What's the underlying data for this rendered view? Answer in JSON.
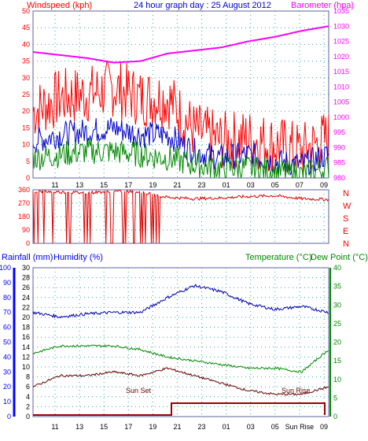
{
  "header": {
    "windspeed_label": "Windspeed (kph)",
    "title": "24 hour graph day : 25 August 2012",
    "barometer_label": "Barometer (hpa)"
  },
  "colors": {
    "wind_gust": "#ff0000",
    "wind_avg": "#0000cc",
    "wind_low": "#008800",
    "barometer": "#ff00ff",
    "direction": "#dd0000",
    "temperature": "#0000aa",
    "dewpoint": "#008800",
    "humidity_like": "#660000",
    "sun_line": "#990000",
    "grid": "#3aa6a6",
    "axis_blue": "#0000ff",
    "axis_red": "#ff0000",
    "axis_magenta": "#ff00ff",
    "axis_green": "#008800"
  },
  "time_ticks": [
    "11",
    "13",
    "15",
    "17",
    "19",
    "21",
    "23",
    "01",
    "03",
    "05",
    "07",
    "09"
  ],
  "bottom_time_ticks": [
    "11",
    "13",
    "15",
    "17",
    "19",
    "21",
    "23",
    "01",
    "03",
    "05",
    "Sun Rise",
    "09"
  ],
  "chart_data": [
    {
      "type": "line",
      "title": "24 hour graph day : 25 August 2012",
      "ylabel": "Windspeed (kph)",
      "y2label": "Barometer (hpa)",
      "ylim": [
        0,
        50
      ],
      "y2lim": [
        980,
        1035
      ],
      "y_ticks": [
        "0",
        "5",
        "10",
        "15",
        "20",
        "25",
        "30",
        "35",
        "40",
        "45",
        "50"
      ],
      "y2_ticks": [
        "980",
        "985",
        "990",
        "995",
        "1000",
        "1005",
        "1010",
        "1015",
        "1020",
        "1025",
        "1030",
        "1035"
      ],
      "x": [
        "11",
        "13",
        "15",
        "17",
        "19",
        "21",
        "23",
        "01",
        "03",
        "05",
        "07",
        "09"
      ],
      "series": [
        {
          "role": "gust",
          "values": [
            20,
            24,
            25,
            27,
            24,
            24,
            14,
            11,
            12,
            10,
            8,
            12
          ]
        },
        {
          "role": "average",
          "values": [
            11,
            13,
            14,
            15,
            13,
            13,
            8,
            6,
            7,
            5,
            4,
            7
          ]
        },
        {
          "role": "low",
          "values": [
            6,
            7,
            8,
            8,
            7,
            6,
            4,
            3,
            3,
            2,
            1,
            3
          ]
        },
        {
          "role": "barometer",
          "values": [
            1021.5,
            1020.5,
            1019.5,
            1018,
            1018.5,
            1021,
            1022,
            1023,
            1025,
            1026.5,
            1028.5,
            1030
          ]
        }
      ]
    },
    {
      "type": "line",
      "ylim": [
        0,
        360
      ],
      "y_ticks": [
        "0",
        "90",
        "180",
        "270",
        "360"
      ],
      "right_labels": [
        "N",
        "W",
        "S",
        "E",
        "N"
      ],
      "x": [
        "11",
        "13",
        "15",
        "17",
        "19",
        "21",
        "23",
        "01",
        "03",
        "05",
        "07",
        "09"
      ],
      "series": [
        {
          "role": "direction",
          "values": [
            350,
            345,
            340,
            350,
            345,
            310,
            300,
            305,
            315,
            320,
            300,
            295
          ]
        }
      ]
    },
    {
      "type": "line",
      "left_title_1": "Rainfall (mm)",
      "left_title_2": "Humidity (%)",
      "right_title_1": "Temperature (°C)",
      "right_title_2": "Dew Point (°C)",
      "y_ticks_rain": [
        "0",
        "2",
        "4",
        "6",
        "8",
        "10",
        "12",
        "14",
        "16",
        "18",
        "20",
        "22",
        "24",
        "26",
        "28",
        "30"
      ],
      "y_ticks_humidity": [
        "0",
        "10",
        "20",
        "30",
        "40",
        "50",
        "60",
        "70",
        "80",
        "90",
        "100"
      ],
      "y_ticks_temp": [
        "0",
        "5",
        "10",
        "15",
        "20",
        "25",
        "30",
        "35",
        "40"
      ],
      "ylim_humidity": [
        0,
        100
      ],
      "ylim_temp": [
        0,
        40
      ],
      "x": [
        "11",
        "13",
        "15",
        "17",
        "19",
        "21",
        "23",
        "01",
        "03",
        "05",
        "07",
        "09"
      ],
      "annotations": [
        "Sun Set",
        "Sun Rise"
      ],
      "series": [
        {
          "role": "humidity-blue",
          "values": [
            70,
            67,
            69,
            70,
            70,
            80,
            88,
            84,
            76,
            72,
            74,
            70
          ]
        },
        {
          "role": "green",
          "values": [
            17,
            19,
            19,
            19,
            18,
            16,
            15,
            14,
            13,
            13,
            12,
            18
          ]
        },
        {
          "role": "darkred",
          "values": [
            8,
            11,
            11,
            12,
            11,
            13,
            11,
            9,
            7,
            6,
            6,
            8
          ]
        },
        {
          "role": "sun-indicator",
          "values": [
            0,
            0,
            0,
            0,
            0,
            1,
            1,
            1,
            1,
            1,
            1,
            0
          ]
        }
      ]
    }
  ]
}
